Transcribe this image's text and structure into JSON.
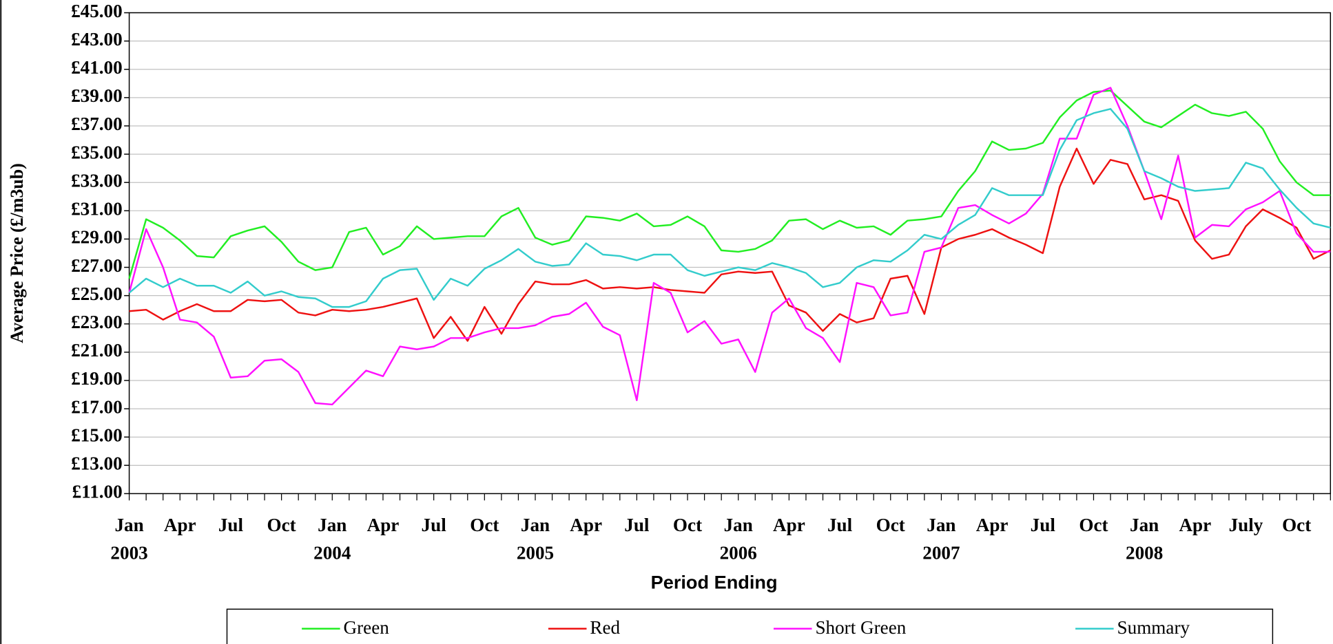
{
  "chart_data": {
    "type": "line",
    "x_label": "Period Ending",
    "y_label": "Average Price (£/m3ub)",
    "categories": [
      "Jan",
      null,
      null,
      "Apr",
      null,
      null,
      "Jul",
      null,
      null,
      "Oct",
      null,
      null,
      "Jan",
      null,
      null,
      "Apr",
      null,
      null,
      "Jul",
      null,
      null,
      "Oct",
      null,
      null,
      "Jan",
      null,
      null,
      "Apr",
      null,
      null,
      "Jul",
      null,
      null,
      "Oct",
      null,
      null,
      "Jan",
      null,
      null,
      "Apr",
      null,
      null,
      "Jul",
      null,
      null,
      "Oct",
      null,
      null,
      "Jan",
      null,
      null,
      "Apr",
      null,
      null,
      "Jul",
      null,
      null,
      "Oct",
      null,
      null,
      "Jan",
      null,
      null,
      "Apr",
      null,
      null,
      "July",
      null,
      null,
      "Oct",
      null,
      null
    ],
    "category_years": [
      "2003",
      null,
      null,
      null,
      null,
      null,
      null,
      null,
      null,
      null,
      null,
      null,
      "2004",
      null,
      null,
      null,
      null,
      null,
      null,
      null,
      null,
      null,
      null,
      null,
      "2005",
      null,
      null,
      null,
      null,
      null,
      null,
      null,
      null,
      null,
      null,
      null,
      "2006",
      null,
      null,
      null,
      null,
      null,
      null,
      null,
      null,
      null,
      null,
      null,
      "2007",
      null,
      null,
      null,
      null,
      null,
      null,
      null,
      null,
      null,
      null,
      null,
      "2008",
      null,
      null,
      null,
      null,
      null,
      null,
      null,
      null,
      null,
      null,
      null
    ],
    "series": [
      {
        "name": "Green",
        "color": "#22ee22",
        "values": [
          26.2,
          30.4,
          29.8,
          28.9,
          27.8,
          27.7,
          29.2,
          29.6,
          29.9,
          28.8,
          27.4,
          26.8,
          27.0,
          29.5,
          29.8,
          27.9,
          28.5,
          29.9,
          29.0,
          29.1,
          29.2,
          29.2,
          30.6,
          31.2,
          29.1,
          28.6,
          28.9,
          30.6,
          30.5,
          30.3,
          30.8,
          29.9,
          30.0,
          30.6,
          29.9,
          28.2,
          28.1,
          28.3,
          28.9,
          30.3,
          30.4,
          29.7,
          30.3,
          29.8,
          29.9,
          29.3,
          30.3,
          30.4,
          30.6,
          32.4,
          33.8,
          35.9,
          35.3,
          35.4,
          35.8,
          37.6,
          38.8,
          39.4,
          39.5,
          38.4,
          37.3,
          36.9,
          37.7,
          38.5,
          37.9,
          37.7,
          38.0,
          36.8,
          34.5,
          33.0,
          32.1,
          32.1
        ]
      },
      {
        "name": "Red",
        "color": "#ee1111",
        "values": [
          23.9,
          24.0,
          23.3,
          23.9,
          24.4,
          23.9,
          23.9,
          24.7,
          24.6,
          24.7,
          23.8,
          23.6,
          24.0,
          23.9,
          24.0,
          24.2,
          24.5,
          24.8,
          22.0,
          23.5,
          21.8,
          24.2,
          22.3,
          24.4,
          26.0,
          25.8,
          25.8,
          26.1,
          25.5,
          25.6,
          25.5,
          25.6,
          25.4,
          25.3,
          25.2,
          26.5,
          26.7,
          26.6,
          26.7,
          24.3,
          23.8,
          22.5,
          23.7,
          23.1,
          23.4,
          26.2,
          26.4,
          23.7,
          28.4,
          29.0,
          29.3,
          29.7,
          29.1,
          28.6,
          28.0,
          32.7,
          35.4,
          32.9,
          34.6,
          34.3,
          31.8,
          32.1,
          31.7,
          28.9,
          27.6,
          27.9,
          29.9,
          31.1,
          30.5,
          29.8,
          27.6,
          28.2
        ]
      },
      {
        "name": "Short Green",
        "color": "#ff11ff",
        "values": [
          25.2,
          29.7,
          27.0,
          23.3,
          23.1,
          22.1,
          19.2,
          19.3,
          20.4,
          20.5,
          19.6,
          17.4,
          17.3,
          18.5,
          19.7,
          19.3,
          21.4,
          21.2,
          21.4,
          22.0,
          22.0,
          22.4,
          22.7,
          22.7,
          22.9,
          23.5,
          23.7,
          24.5,
          22.8,
          22.2,
          17.6,
          25.9,
          25.2,
          22.4,
          23.2,
          21.6,
          21.9,
          19.6,
          23.8,
          24.8,
          22.7,
          22.0,
          20.3,
          25.9,
          25.6,
          23.6,
          23.8,
          28.1,
          28.4,
          31.2,
          31.4,
          30.7,
          30.1,
          30.8,
          32.2,
          36.1,
          36.1,
          39.2,
          39.7,
          37.0,
          33.8,
          30.4,
          34.9,
          29.1,
          30.0,
          29.9,
          31.1,
          31.6,
          32.4,
          29.4,
          28.1,
          28.1
        ]
      },
      {
        "name": "Summary",
        "color": "#33cccc",
        "values": [
          25.2,
          26.2,
          25.6,
          26.2,
          25.7,
          25.7,
          25.2,
          26.0,
          25.0,
          25.3,
          24.9,
          24.8,
          24.2,
          24.2,
          24.6,
          26.2,
          26.8,
          26.9,
          24.7,
          26.2,
          25.7,
          26.9,
          27.5,
          28.3,
          27.4,
          27.1,
          27.2,
          28.7,
          27.9,
          27.8,
          27.5,
          27.9,
          27.9,
          26.8,
          26.4,
          26.7,
          27.0,
          26.8,
          27.3,
          27.0,
          26.6,
          25.6,
          25.9,
          27.0,
          27.5,
          27.4,
          28.2,
          29.3,
          29.0,
          30.0,
          30.7,
          32.6,
          32.1,
          32.1,
          32.1,
          35.3,
          37.4,
          37.9,
          38.2,
          36.8,
          33.8,
          33.3,
          32.7,
          32.4,
          32.5,
          32.6,
          34.4,
          34.0,
          32.5,
          31.2,
          30.1,
          29.8
        ]
      }
    ],
    "ylim": [
      11,
      45
    ],
    "yticks": [
      {
        "value": 11,
        "label": "£11.00"
      },
      {
        "value": 13,
        "label": "£13.00"
      },
      {
        "value": 15,
        "label": "£15.00"
      },
      {
        "value": 17,
        "label": "£17.00"
      },
      {
        "value": 19,
        "label": "£19.00"
      },
      {
        "value": 21,
        "label": "£21.00"
      },
      {
        "value": 23,
        "label": "£23.00"
      },
      {
        "value": 25,
        "label": "£25.00"
      },
      {
        "value": 27,
        "label": "£27.00"
      },
      {
        "value": 29,
        "label": "£29.00"
      },
      {
        "value": 31,
        "label": "£31.00"
      },
      {
        "value": 33,
        "label": "£33.00"
      },
      {
        "value": 35,
        "label": "£35.00"
      },
      {
        "value": 37,
        "label": "£37.00"
      },
      {
        "value": 39,
        "label": "£39.00"
      },
      {
        "value": 41,
        "label": "£41.00"
      },
      {
        "value": 43,
        "label": "£43.00"
      },
      {
        "value": 45,
        "label": "£45.00"
      }
    ],
    "grid": true,
    "legend": "bottom"
  }
}
